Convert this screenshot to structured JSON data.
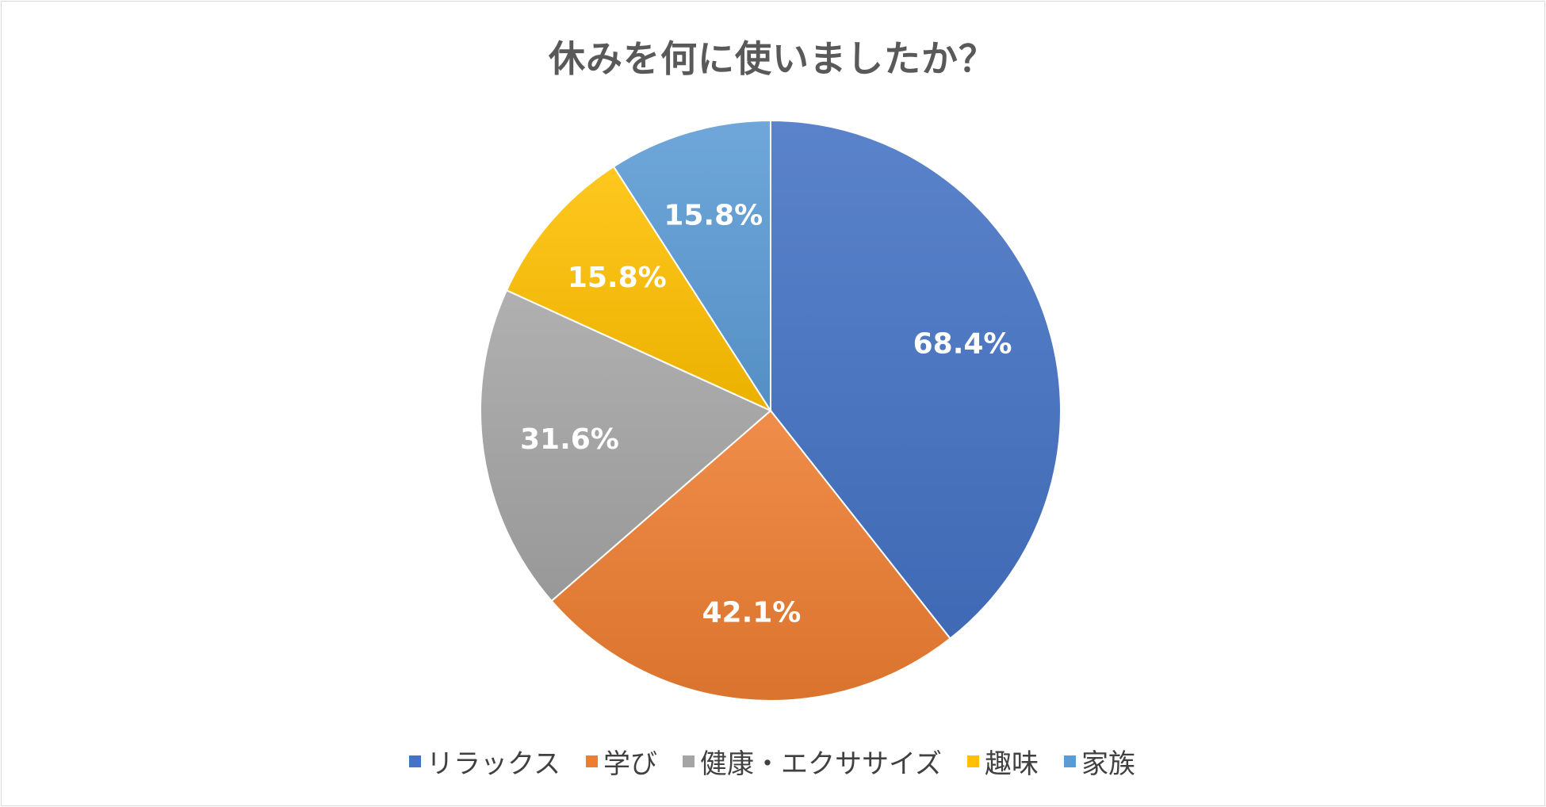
{
  "chart_data": {
    "type": "pie",
    "title": "休みを何に使いましたか？",
    "categories": [
      "リラックス",
      "学び",
      "健康・エクササイズ",
      "趣味",
      "家族"
    ],
    "values": [
      68.4,
      42.1,
      31.6,
      15.8,
      15.8
    ],
    "labels": [
      "68.4%",
      "42.1%",
      "31.6%",
      "15.8%",
      "15.8%"
    ],
    "colors": [
      "#4472c4",
      "#ed7d31",
      "#a5a5a5",
      "#ffc000",
      "#5b9bd5"
    ],
    "legend_position": "bottom",
    "start_angle": "top, clockwise"
  }
}
